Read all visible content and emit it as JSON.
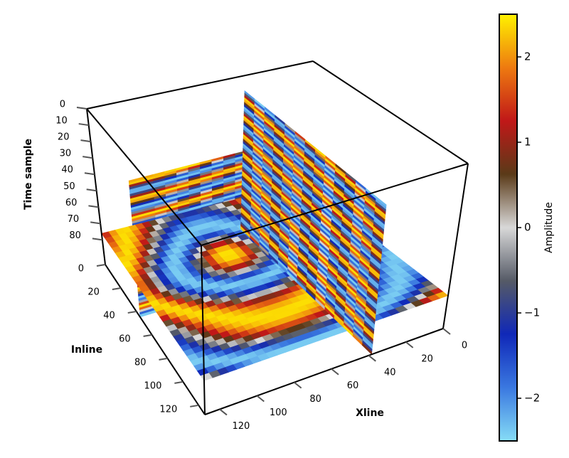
{
  "chart_data": {
    "type": "seismic-cube",
    "axes": {
      "time": {
        "label": "Time sample",
        "lim": [
          0,
          95
        ],
        "ticks": [
          0,
          10,
          20,
          30,
          40,
          50,
          60,
          70,
          80
        ]
      },
      "inline": {
        "label": "Inline",
        "lim": [
          0,
          128
        ],
        "ticks": [
          0,
          20,
          40,
          60,
          80,
          100,
          120
        ]
      },
      "xline": {
        "label": "Xline",
        "lim": [
          0,
          128
        ],
        "ticks": [
          0,
          20,
          40,
          60,
          80,
          100,
          120
        ]
      }
    },
    "colorbar": {
      "label": "Amplitude",
      "ylim": [
        -2.5,
        2.5
      ],
      "yticks": [
        {
          "value": -2,
          "label": "−2"
        },
        {
          "value": -1,
          "label": "−1"
        },
        0,
        1,
        2
      ],
      "colors": [
        "#86dcf6",
        "#3a78e0",
        "#1028b8",
        "#555a66",
        "#d8d8d8",
        "#5a3a18",
        "#c01818",
        "#ee7a10",
        "#fff200"
      ]
    }
  }
}
